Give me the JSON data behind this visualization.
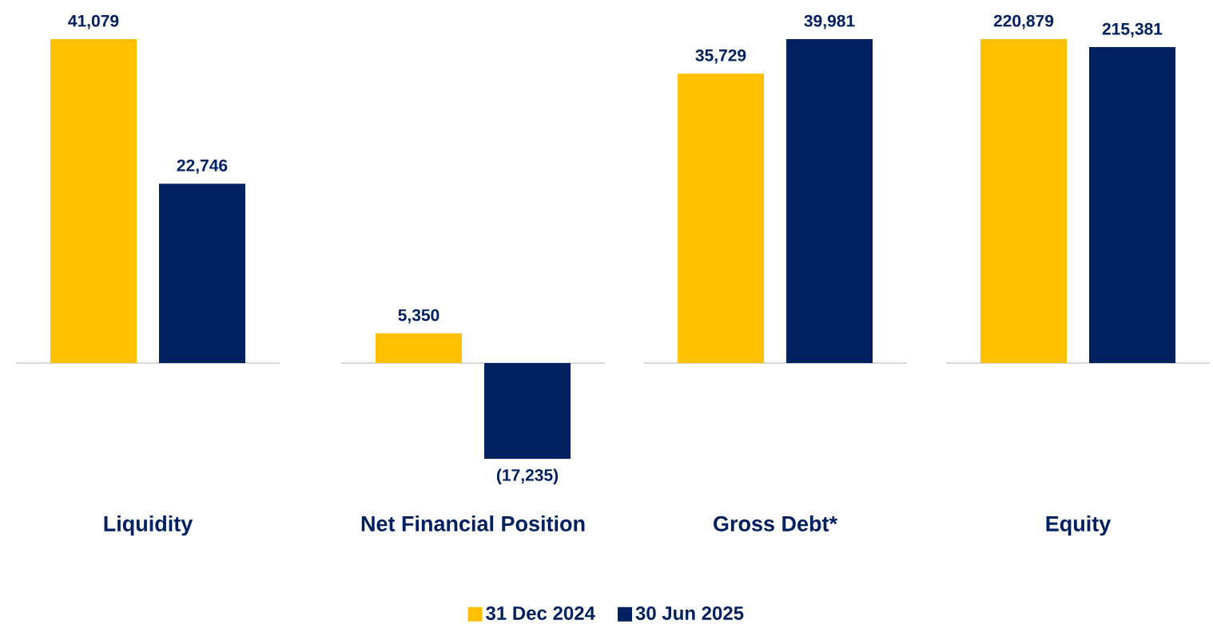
{
  "chart_data": [
    {
      "type": "bar",
      "categories": [
        null
      ],
      "xlabel": "Liquidity",
      "series": [
        {
          "color": "#ffc000",
          "values": [
            41079
          ],
          "value_labels": [
            "41,079"
          ]
        },
        {
          "color": "#002060",
          "values": [
            22746
          ],
          "value_labels": [
            "22,746"
          ]
        }
      ]
    },
    {
      "type": "bar",
      "categories": [
        null
      ],
      "xlabel": "Net Financial Position",
      "legend": "bottom",
      "series": [
        {
          "name": "31 Dec 2024",
          "color": "#ffc000",
          "values": [
            5350
          ],
          "value_labels": [
            "5,350"
          ]
        },
        {
          "name": "30 Jun 2025",
          "color": "#002060",
          "values": [
            -17235
          ],
          "value_labels": [
            "(17,235)"
          ]
        }
      ]
    },
    {
      "type": "bar",
      "categories": [
        null
      ],
      "xlabel": "Gross Debt*",
      "series": [
        {
          "color": "#ffc000",
          "values": [
            35729
          ],
          "value_labels": [
            "35,729"
          ]
        },
        {
          "color": "#002060",
          "values": [
            39981
          ],
          "value_labels": [
            "39,981"
          ]
        }
      ]
    },
    {
      "type": "bar",
      "categories": [
        null
      ],
      "xlabel": "Equity",
      "series": [
        {
          "color": "#ffc000",
          "values": [
            220879
          ],
          "value_labels": [
            "220,879"
          ]
        },
        {
          "color": "#002060",
          "values": [
            215381
          ],
          "value_labels": [
            "215,381"
          ]
        }
      ]
    }
  ]
}
